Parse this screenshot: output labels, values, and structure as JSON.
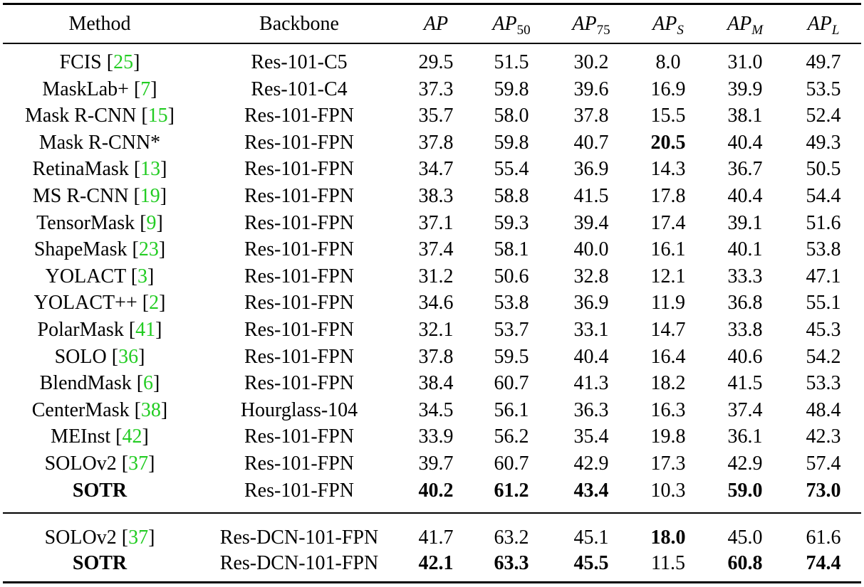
{
  "table": {
    "header": [
      {
        "text": "Method"
      },
      {
        "text": "Backbone"
      },
      {
        "base": "AP"
      },
      {
        "base": "AP",
        "sub": "50"
      },
      {
        "base": "AP",
        "sub": "75"
      },
      {
        "base": "AP",
        "sub": "S",
        "sub_italic": true
      },
      {
        "base": "AP",
        "sub": "M",
        "sub_italic": true
      },
      {
        "base": "AP",
        "sub": "L",
        "sub_italic": true
      }
    ],
    "sections": [
      {
        "rows": [
          {
            "method": "FCIS",
            "cite": "[25]",
            "backbone": "Res-101-C5",
            "values": [
              "29.5",
              "51.5",
              "30.2",
              "8.0",
              "31.0",
              "49.7"
            ],
            "bold": []
          },
          {
            "method": "MaskLab+",
            "cite": "[7]",
            "backbone": "Res-101-C4",
            "values": [
              "37.3",
              "59.8",
              "39.6",
              "16.9",
              "39.9",
              "53.5"
            ],
            "bold": []
          },
          {
            "method": "Mask R-CNN",
            "cite": "[15]",
            "backbone": "Res-101-FPN",
            "values": [
              "35.7",
              "58.0",
              "37.8",
              "15.5",
              "38.1",
              "52.4"
            ],
            "bold": []
          },
          {
            "method": "Mask R-CNN*",
            "backbone": "Res-101-FPN",
            "values": [
              "37.8",
              "59.8",
              "40.7",
              "20.5",
              "40.4",
              "49.3"
            ],
            "bold": [
              5
            ]
          },
          {
            "method": "RetinaMask",
            "cite": "[13]",
            "backbone": "Res-101-FPN",
            "values": [
              "34.7",
              "55.4",
              "36.9",
              "14.3",
              "36.7",
              "50.5"
            ],
            "bold": []
          },
          {
            "method": "MS R-CNN",
            "cite": "[19]",
            "backbone": "Res-101-FPN",
            "values": [
              "38.3",
              "58.8",
              "41.5",
              "17.8",
              "40.4",
              "54.4"
            ],
            "bold": []
          },
          {
            "method": "TensorMask",
            "cite": "[9]",
            "backbone": "Res-101-FPN",
            "values": [
              "37.1",
              "59.3",
              "39.4",
              "17.4",
              "39.1",
              "51.6"
            ],
            "bold": []
          },
          {
            "method": "ShapeMask",
            "cite": "[23]",
            "backbone": "Res-101-FPN",
            "values": [
              "37.4",
              "58.1",
              "40.0",
              "16.1",
              "40.1",
              "53.8"
            ],
            "bold": []
          },
          {
            "method": "YOLACT",
            "cite": "[3]",
            "backbone": "Res-101-FPN",
            "values": [
              "31.2",
              "50.6",
              "32.8",
              "12.1",
              "33.3",
              "47.1"
            ],
            "bold": []
          },
          {
            "method": "YOLACT++",
            "cite": "[2]",
            "backbone": "Res-101-FPN",
            "values": [
              "34.6",
              "53.8",
              "36.9",
              "11.9",
              "36.8",
              "55.1"
            ],
            "bold": []
          },
          {
            "method": "PolarMask",
            "cite": "[41]",
            "backbone": "Res-101-FPN",
            "values": [
              "32.1",
              "53.7",
              "33.1",
              "14.7",
              "33.8",
              "45.3"
            ],
            "bold": []
          },
          {
            "method": "SOLO",
            "cite": "[36]",
            "backbone": "Res-101-FPN",
            "values": [
              "37.8",
              "59.5",
              "40.4",
              "16.4",
              "40.6",
              "54.2"
            ],
            "bold": []
          },
          {
            "method": "BlendMask",
            "cite": "[6]",
            "backbone": "Res-101-FPN",
            "values": [
              "38.4",
              "60.7",
              "41.3",
              "18.2",
              "41.5",
              "53.3"
            ],
            "bold": []
          },
          {
            "method": "CenterMask",
            "cite": "[38]",
            "backbone": "Hourglass-104",
            "values": [
              "34.5",
              "56.1",
              "36.3",
              "16.3",
              "37.4",
              "48.4"
            ],
            "bold": []
          },
          {
            "method": "MEInst",
            "cite": "[42]",
            "backbone": "Res-101-FPN",
            "values": [
              "33.9",
              "56.2",
              "35.4",
              "19.8",
              "36.1",
              "42.3"
            ],
            "bold": []
          },
          {
            "method": "SOLOv2",
            "cite": "[37]",
            "backbone": "Res-101-FPN",
            "values": [
              "39.7",
              "60.7",
              "42.9",
              "17.3",
              "42.9",
              "57.4"
            ],
            "bold": []
          },
          {
            "method": "SOTR",
            "backbone": "Res-101-FPN",
            "values": [
              "40.2",
              "61.2",
              "43.4",
              "10.3",
              "59.0",
              "73.0"
            ],
            "bold": [
              0,
              2,
              3,
              4,
              6,
              7
            ]
          }
        ]
      },
      {
        "rows": [
          {
            "method": "SOLOv2",
            "cite": "[37]",
            "backbone": "Res-DCN-101-FPN",
            "values": [
              "41.7",
              "63.2",
              "45.1",
              "18.0",
              "45.0",
              "61.6"
            ],
            "bold": [
              5
            ]
          },
          {
            "method": "SOTR",
            "backbone": "Res-DCN-101-FPN",
            "values": [
              "42.1",
              "63.3",
              "45.5",
              "11.5",
              "60.8",
              "74.4"
            ],
            "bold": [
              0,
              2,
              3,
              4,
              6,
              7
            ]
          }
        ]
      }
    ],
    "cite_color": "#22cc22"
  }
}
